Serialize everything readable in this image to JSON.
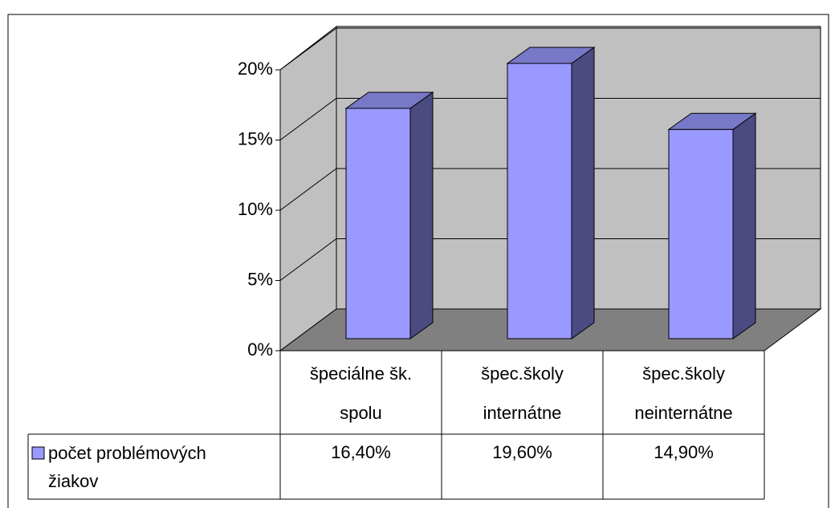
{
  "chart_data": {
    "type": "bar3d",
    "categories": [
      [
        "špeciálne šk.",
        "spolu"
      ],
      [
        "špec.školy",
        "internátne"
      ],
      [
        "špec.školy",
        "neinternátne"
      ]
    ],
    "series": [
      {
        "name": "počet problémových žiakov",
        "color": "#9999ff",
        "side_color": "#4b4b82",
        "top_color": "#7878c8",
        "values": [
          16.4,
          19.6,
          14.9
        ],
        "value_labels": [
          "16,40%",
          "19,60%",
          "14,90%"
        ]
      }
    ],
    "ylim": [
      0,
      20
    ],
    "yticks": [
      {
        "value": 0,
        "label": "0%"
      },
      {
        "value": 5,
        "label": "5%"
      },
      {
        "value": 10,
        "label": "10%"
      },
      {
        "value": 15,
        "label": "15%"
      },
      {
        "value": 20,
        "label": "20%"
      }
    ],
    "grid": true,
    "legend": "table"
  }
}
